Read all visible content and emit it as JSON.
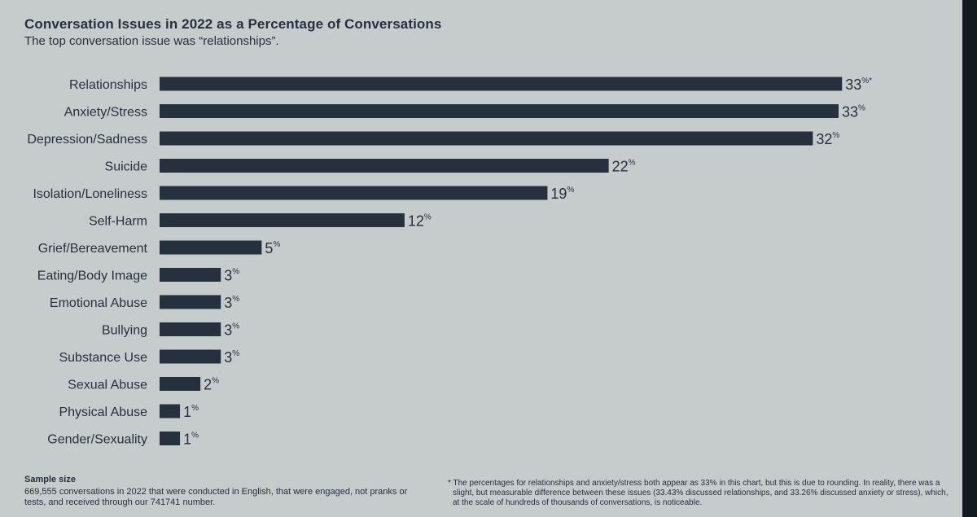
{
  "title": "Conversation Issues in 2022 as a Percentage of Conversations",
  "subtitle": "The top conversation issue was “relationships”.",
  "chart_data": {
    "type": "bar",
    "orientation": "horizontal",
    "title": "Conversation Issues in 2022 as a Percentage of Conversations",
    "subtitle": "The top conversation issue was “relationships”.",
    "xlabel": "",
    "ylabel": "",
    "xlim": [
      0,
      33.5
    ],
    "unit_suffix": "%",
    "categories": [
      "Relationships",
      "Anxiety/Stress",
      "Depression/Sadness",
      "Suicide",
      "Isolation/Loneliness",
      "Self-Harm",
      "Grief/Bereavement",
      "Eating/Body Image",
      "Emotional Abuse",
      "Bullying",
      "Substance Use",
      "Sexual Abuse",
      "Physical Abuse",
      "Gender/Sexuality"
    ],
    "values": [
      33.43,
      33.26,
      32,
      22,
      19,
      12,
      5,
      3,
      3,
      3,
      3,
      2,
      1,
      1
    ],
    "value_labels": [
      "33",
      "33",
      "32",
      "22",
      "19",
      "12",
      "5",
      "3",
      "3",
      "3",
      "3",
      "2",
      "1",
      "1"
    ],
    "label_marks": [
      "*",
      "",
      "",
      "",
      "",
      "",
      "",
      "",
      "",
      "",
      "",
      "",
      "",
      ""
    ]
  },
  "sample": {
    "heading": "Sample size",
    "text": "669,555 conversations in 2022 that were conducted in English, that were engaged, not pranks or tests, and received through our 741741 number."
  },
  "footnote": "* The percentages for relationships and anxiety/stress both appear as 33% in this chart, but this is due to rounding. In reality, there was a slight, but measurable difference between these issues (33.43% discussed relationships, and 33.26% discussed anxiety or stress), which, at the scale of hundreds of thousands of conversations, is noticeable.",
  "colors": {
    "background": "#c6cbcc",
    "bar": "#27303d",
    "text": "#27303d",
    "edge": "#111a21"
  }
}
